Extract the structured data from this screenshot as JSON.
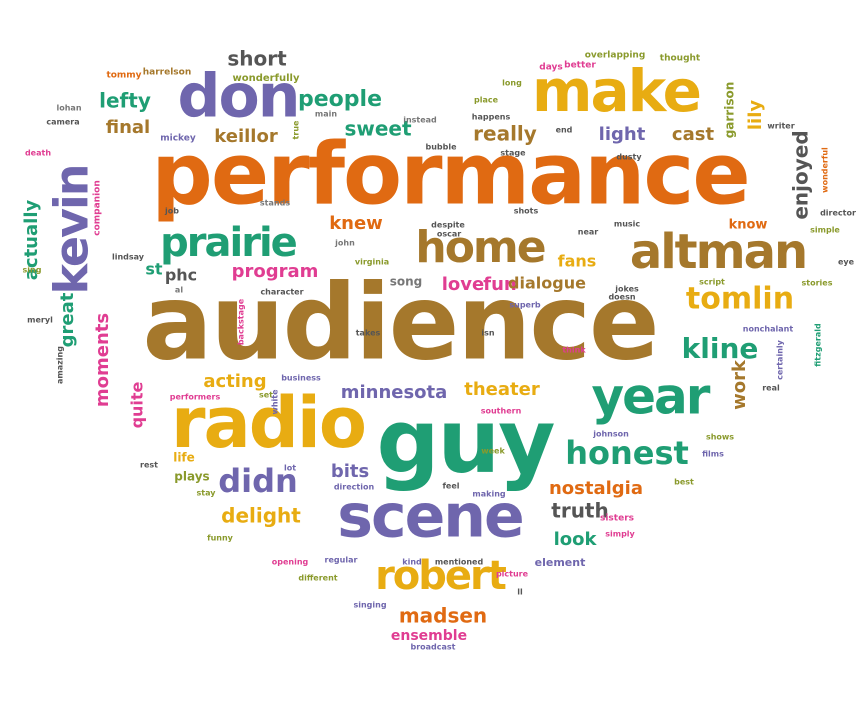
{
  "colors": {
    "orange": "#e06a12",
    "brown": "#a5782c",
    "purple": "#6f66ad",
    "green": "#1f9e74",
    "pink": "#e03d92",
    "gold": "#e8ac12",
    "olive": "#8a9a2c",
    "gray": "#777777",
    "darkgray": "#555555"
  },
  "words": [
    {
      "text": "performance",
      "color": "orange",
      "size": "xxl"
    },
    {
      "text": "audience",
      "color": "brown",
      "size": "xxxl"
    },
    {
      "text": "guy",
      "color": "green",
      "size": "xxl"
    },
    {
      "text": "radio",
      "color": "gold",
      "size": "xl"
    },
    {
      "text": "scene",
      "color": "purple",
      "size": "xl"
    },
    {
      "text": "make",
      "color": "gold",
      "size": "xl"
    },
    {
      "text": "don",
      "color": "purple",
      "size": "xl"
    },
    {
      "text": "kevin",
      "color": "purple",
      "size": "xl"
    },
    {
      "text": "altman",
      "color": "brown",
      "size": "l"
    },
    {
      "text": "home",
      "color": "brown",
      "size": "l"
    },
    {
      "text": "prairie",
      "color": "green",
      "size": "l"
    },
    {
      "text": "year",
      "color": "green",
      "size": "l"
    },
    {
      "text": "robert",
      "color": "gold",
      "size": "l"
    },
    {
      "text": "tomlin",
      "color": "gold",
      "size": "m"
    },
    {
      "text": "honest",
      "color": "green",
      "size": "m"
    },
    {
      "text": "kline",
      "color": "green",
      "size": "m"
    },
    {
      "text": "people",
      "color": "green",
      "size": "s"
    },
    {
      "text": "lefty",
      "color": "green",
      "size": "s"
    },
    {
      "text": "really",
      "color": "brown",
      "size": "s"
    },
    {
      "text": "final",
      "color": "brown",
      "size": "s"
    },
    {
      "text": "keillor",
      "color": "brown",
      "size": "s"
    },
    {
      "text": "sweet",
      "color": "green",
      "size": "s"
    },
    {
      "text": "light",
      "color": "purple",
      "size": "s"
    },
    {
      "text": "cast",
      "color": "brown",
      "size": "s"
    },
    {
      "text": "lily",
      "color": "gold",
      "size": "s"
    },
    {
      "text": "enjoyed",
      "color": "darkgray",
      "size": "s"
    },
    {
      "text": "short",
      "color": "darkgray",
      "size": "s"
    },
    {
      "text": "knew",
      "color": "orange",
      "size": "s"
    },
    {
      "text": "fans",
      "color": "gold",
      "size": "s"
    },
    {
      "text": "love",
      "color": "pink",
      "size": "s"
    },
    {
      "text": "fun",
      "color": "pink",
      "size": "s"
    },
    {
      "text": "dialogue",
      "color": "brown",
      "size": "s"
    },
    {
      "text": "program",
      "color": "pink",
      "size": "s"
    },
    {
      "text": "st",
      "color": "green",
      "size": "s"
    },
    {
      "text": "phc",
      "color": "darkgray",
      "size": "s"
    },
    {
      "text": "actually",
      "color": "green",
      "size": "s"
    },
    {
      "text": "great",
      "color": "green",
      "size": "s"
    },
    {
      "text": "moments",
      "color": "pink",
      "size": "s"
    },
    {
      "text": "quite",
      "color": "pink",
      "size": "s"
    },
    {
      "text": "acting",
      "color": "gold",
      "size": "s"
    },
    {
      "text": "minnesota",
      "color": "purple",
      "size": "s"
    },
    {
      "text": "theater",
      "color": "gold",
      "size": "s"
    },
    {
      "text": "work",
      "color": "brown",
      "size": "s"
    },
    {
      "text": "didn",
      "color": "purple",
      "size": "m"
    },
    {
      "text": "bits",
      "color": "purple",
      "size": "s"
    },
    {
      "text": "delight",
      "color": "gold",
      "size": "s"
    },
    {
      "text": "nostalgia",
      "color": "orange",
      "size": "s"
    },
    {
      "text": "truth",
      "color": "darkgray",
      "size": "s"
    },
    {
      "text": "look",
      "color": "green",
      "size": "s"
    },
    {
      "text": "madsen",
      "color": "orange",
      "size": "s"
    },
    {
      "text": "ensemble",
      "color": "pink",
      "size": "xs"
    },
    {
      "text": "know",
      "color": "orange",
      "size": "xs"
    },
    {
      "text": "garrison",
      "color": "olive",
      "size": "xs"
    },
    {
      "text": "song",
      "color": "gray",
      "size": "xs"
    },
    {
      "text": "life",
      "color": "gold",
      "size": "xs"
    },
    {
      "text": "plays",
      "color": "olive",
      "size": "xs"
    },
    {
      "text": "element",
      "color": "purple",
      "size": "xs"
    },
    {
      "text": "sisters",
      "color": "pink",
      "size": "xs"
    },
    {
      "text": "companion",
      "color": "pink",
      "size": "xs"
    },
    {
      "text": "mickey",
      "color": "purple",
      "size": "xs"
    },
    {
      "text": "wonderfully",
      "color": "olive",
      "size": "xs"
    },
    {
      "text": "harrelson",
      "color": "brown",
      "size": "xs"
    },
    {
      "text": "tommy",
      "color": "orange",
      "size": "xs"
    },
    {
      "text": "days",
      "color": "pink",
      "size": "xs"
    },
    {
      "text": "better",
      "color": "pink",
      "size": "xs"
    },
    {
      "text": "overlapping",
      "color": "olive",
      "size": "xs"
    },
    {
      "text": "thought",
      "color": "olive",
      "size": "xs"
    },
    {
      "text": "long",
      "color": "olive",
      "size": "xs"
    },
    {
      "text": "place",
      "color": "olive",
      "size": "xs"
    },
    {
      "text": "happens",
      "color": "darkgray",
      "size": "xs"
    },
    {
      "text": "instead",
      "color": "gray",
      "size": "xs"
    },
    {
      "text": "main",
      "color": "gray",
      "size": "xs"
    },
    {
      "text": "true",
      "color": "olive",
      "size": "xs"
    },
    {
      "text": "lohan",
      "color": "gray",
      "size": "xs"
    },
    {
      "text": "camera",
      "color": "darkgray",
      "size": "xs"
    },
    {
      "text": "death",
      "color": "pink",
      "size": "xs"
    },
    {
      "text": "writer",
      "color": "darkgray",
      "size": "xs"
    },
    {
      "text": "wonderful",
      "color": "orange",
      "size": "xs"
    },
    {
      "text": "director",
      "color": "darkgray",
      "size": "xs"
    },
    {
      "text": "simple",
      "color": "olive",
      "size": "xs"
    },
    {
      "text": "eye",
      "color": "darkgray",
      "size": "xs"
    },
    {
      "text": "stories",
      "color": "olive",
      "size": "xs"
    },
    {
      "text": "script",
      "color": "olive",
      "size": "xs"
    },
    {
      "text": "fitzgerald",
      "color": "green",
      "size": "xs"
    },
    {
      "text": "nonchalant",
      "color": "purple",
      "size": "xs"
    },
    {
      "text": "certainly",
      "color": "purple",
      "size": "xs"
    },
    {
      "text": "real",
      "color": "darkgray",
      "size": "xs"
    },
    {
      "text": "films",
      "color": "purple",
      "size": "xs"
    },
    {
      "text": "best",
      "color": "olive",
      "size": "xs"
    },
    {
      "text": "shows",
      "color": "olive",
      "size": "xs"
    },
    {
      "text": "johnson",
      "color": "purple",
      "size": "xs"
    },
    {
      "text": "simply",
      "color": "pink",
      "size": "xs"
    },
    {
      "text": "week",
      "color": "olive",
      "size": "xs"
    },
    {
      "text": "making",
      "color": "purple",
      "size": "xs"
    },
    {
      "text": "feel",
      "color": "darkgray",
      "size": "xs"
    },
    {
      "text": "direction",
      "color": "purple",
      "size": "xs"
    },
    {
      "text": "lot",
      "color": "purple",
      "size": "xs"
    },
    {
      "text": "stay",
      "color": "olive",
      "size": "xs"
    },
    {
      "text": "rest",
      "color": "darkgray",
      "size": "xs"
    },
    {
      "text": "funny",
      "color": "olive",
      "size": "xs"
    },
    {
      "text": "opening",
      "color": "pink",
      "size": "xs"
    },
    {
      "text": "regular",
      "color": "purple",
      "size": "xs"
    },
    {
      "text": "kind",
      "color": "purple",
      "size": "xs"
    },
    {
      "text": "mentioned",
      "color": "darkgray",
      "size": "xs"
    },
    {
      "text": "different",
      "color": "olive",
      "size": "xs"
    },
    {
      "text": "picture",
      "color": "pink",
      "size": "xs"
    },
    {
      "text": "ll",
      "color": "darkgray",
      "size": "xs"
    },
    {
      "text": "singing",
      "color": "purple",
      "size": "xs"
    },
    {
      "text": "broadcast",
      "color": "purple",
      "size": "xs"
    },
    {
      "text": "performers",
      "color": "pink",
      "size": "xs"
    },
    {
      "text": "set",
      "color": "olive",
      "size": "xs"
    },
    {
      "text": "white",
      "color": "purple",
      "size": "xs"
    },
    {
      "text": "business",
      "color": "purple",
      "size": "xs"
    },
    {
      "text": "southern",
      "color": "pink",
      "size": "xs"
    },
    {
      "text": "amazing",
      "color": "darkgray",
      "size": "xs"
    },
    {
      "text": "meryl",
      "color": "darkgray",
      "size": "xs"
    },
    {
      "text": "sing",
      "color": "olive",
      "size": "xs"
    },
    {
      "text": "al",
      "color": "gray",
      "size": "xs"
    },
    {
      "text": "lindsay",
      "color": "darkgray",
      "size": "xs"
    },
    {
      "text": "job",
      "color": "darkgray",
      "size": "xs"
    },
    {
      "text": "stands",
      "color": "gray",
      "size": "xs"
    },
    {
      "text": "john",
      "color": "gray",
      "size": "xs"
    },
    {
      "text": "virginia",
      "color": "olive",
      "size": "xs"
    },
    {
      "text": "backstage",
      "color": "pink",
      "size": "xs"
    },
    {
      "text": "character",
      "color": "darkgray",
      "size": "xs"
    },
    {
      "text": "takes",
      "color": "darkgray",
      "size": "xs"
    },
    {
      "text": "despite",
      "color": "darkgray",
      "size": "xs"
    },
    {
      "text": "oscar",
      "color": "darkgray",
      "size": "xs"
    },
    {
      "text": "isn",
      "color": "darkgray",
      "size": "xs"
    },
    {
      "text": "superb",
      "color": "purple",
      "size": "xs"
    },
    {
      "text": "doesn",
      "color": "darkgray",
      "size": "xs"
    },
    {
      "text": "jokes",
      "color": "darkgray",
      "size": "xs"
    },
    {
      "text": "think",
      "color": "pink",
      "size": "xs"
    },
    {
      "text": "near",
      "color": "darkgray",
      "size": "xs"
    },
    {
      "text": "music",
      "color": "darkgray",
      "size": "xs"
    },
    {
      "text": "shots",
      "color": "darkgray",
      "size": "xs"
    },
    {
      "text": "bubble",
      "color": "darkgray",
      "size": "xs"
    },
    {
      "text": "stage",
      "color": "darkgray",
      "size": "xs"
    },
    {
      "text": "end",
      "color": "darkgray",
      "size": "xs"
    },
    {
      "text": "dusty",
      "color": "darkgray",
      "size": "xs"
    }
  ]
}
